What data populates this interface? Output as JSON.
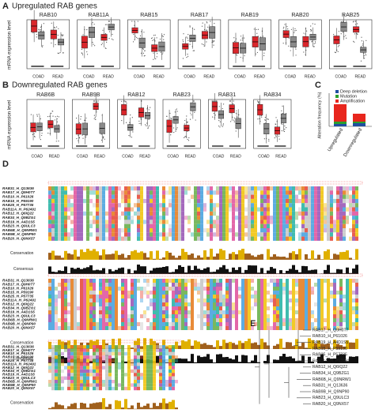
{
  "panels": {
    "a": {
      "label": "A",
      "title": "Upregulated RAB genes",
      "y_label": "mRNA expression level",
      "genes": [
        "RAB10",
        "RAB11A",
        "RAB15",
        "RAB17",
        "RAB19",
        "RAB20",
        "RAB25"
      ],
      "groups": [
        "COAD",
        "READ"
      ]
    },
    "b": {
      "label": "B",
      "title": "Downregulated RAB genes",
      "y_label": "mRNA expression level",
      "genes": [
        "RAB6B",
        "RAB9B",
        "RAB12",
        "RAB23",
        "RAB31",
        "RAB34"
      ],
      "groups": [
        "COAD",
        "READ"
      ]
    },
    "c": {
      "label": "C",
      "y_label": "Alteration frequency (%)",
      "legend": [
        {
          "name": "Deep deletion",
          "color": "#1f4fa0"
        },
        {
          "name": "Mutation",
          "color": "#2ca02c"
        },
        {
          "name": "Amplification",
          "color": "#e8261d"
        }
      ],
      "categories": [
        "Upregulated",
        "Downregulated"
      ]
    },
    "d": {
      "label": "D",
      "sequences": [
        "RAB31_H_Q13636",
        "RAB17_H_Q9H0T7",
        "RAB10_H_P61026",
        "RAB15_H_P59190",
        "RAB25_H_P57735",
        "RAB11A_H_P62491",
        "RAB12_H_Q6IQ22",
        "RAB34_H_Q9BZG1",
        "RAB19_H_A4D1S5",
        "RAB23_H_Q9ULC3",
        "RAB6B_H_Q9NRW1",
        "RAB9B_H_Q9NP90",
        "RAB20_H_Q9NX57"
      ],
      "conservation": "Conservation",
      "consensus": "Consensus"
    },
    "e": {
      "label": "E",
      "leaves": [
        {
          "name": "RAB17_H_Q9H0T7",
          "color": "#e8261d"
        },
        {
          "name": "RAB10_H_P61026",
          "color": "#e8261d"
        },
        {
          "name": "RAB19_H_A4D1S5",
          "color": "#e8261d"
        },
        {
          "name": "RAB15_H_P59190",
          "color": "#e8261d"
        },
        {
          "name": "RAB25_H_P57735",
          "color": "#e8261d"
        },
        {
          "name": "RAB11A_H_P62491",
          "color": "#e8261d"
        },
        {
          "name": "RAB12_H_Q6IQ22",
          "color": "#1f7fd0"
        },
        {
          "name": "RAB34_H_Q9BZG1",
          "color": "#1f7fd0"
        },
        {
          "name": "RAB6B_H_Q9NRW1",
          "color": "#1f7fd0"
        },
        {
          "name": "RAB31_H_Q13636",
          "color": "#1f7fd0"
        },
        {
          "name": "RAB9B_H_Q9NP90",
          "color": "#1f7fd0"
        },
        {
          "name": "RAB23_H_Q9ULC3",
          "color": "#1f7fd0"
        },
        {
          "name": "RAB20_H_Q9NX57",
          "color": "#e8261d"
        }
      ]
    }
  }
}
